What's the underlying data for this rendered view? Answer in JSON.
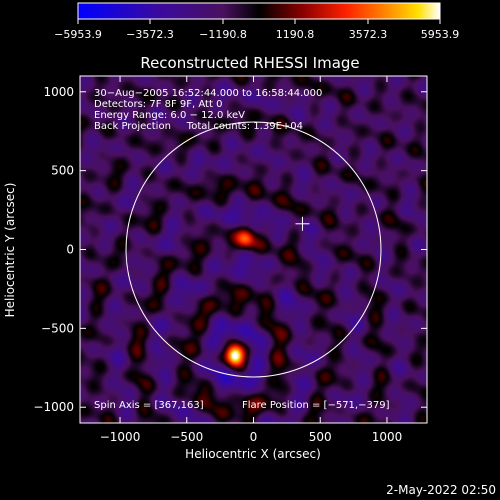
{
  "app": {
    "date_stamp": "2-May-2022 02:50"
  },
  "colorbar": {
    "ticks": [
      "−5953.9",
      "−3572.3",
      "−1190.8",
      "1190.8",
      "3572.3",
      "5953.9"
    ],
    "min": -5953.9,
    "max": 5953.9,
    "colormap": "blue-purple-black-red-orange-yellow-white"
  },
  "chart_data": {
    "type": "heatmap",
    "title": "Reconstructed RHESSI Image",
    "xlabel": "Heliocentric X (arcsec)",
    "ylabel": "Heliocentric Y (arcsec)",
    "xlim": [
      -1300,
      1300
    ],
    "ylim": [
      -1100,
      1100
    ],
    "xticks": [
      -1000,
      -500,
      0,
      500,
      1000
    ],
    "yticks": [
      -1000,
      -500,
      0,
      500,
      1000
    ],
    "xtick_labels": [
      "−1000",
      "−500",
      "0",
      "500",
      "1000"
    ],
    "ytick_labels": [
      "−1000",
      "−500",
      "0",
      "500",
      "1000"
    ],
    "info_lines": [
      "30−Aug−2005 16:52:44.000 to 16:58:44.000",
      "Detectors: 7F 8F 9F, Att 0",
      "Energy Range: 6.0 − 12.0 keV",
      "Back Projection     Total counts: 1.39E+04"
    ],
    "footer_left": "Spin Axis = [367,163]",
    "footer_right": "Flare Position = [−571,−379]",
    "solar_limb_radius": 955,
    "sources": [
      {
        "x": -140,
        "y": -670,
        "peak": 5953.9
      },
      {
        "x": -60,
        "y": 70,
        "peak": 3300
      }
    ],
    "spin_axis_marker": {
      "x": 367,
      "y": 163
    },
    "colors": {
      "background": "#000000",
      "axes": "#ffffff",
      "limb": "#ffffff"
    }
  }
}
